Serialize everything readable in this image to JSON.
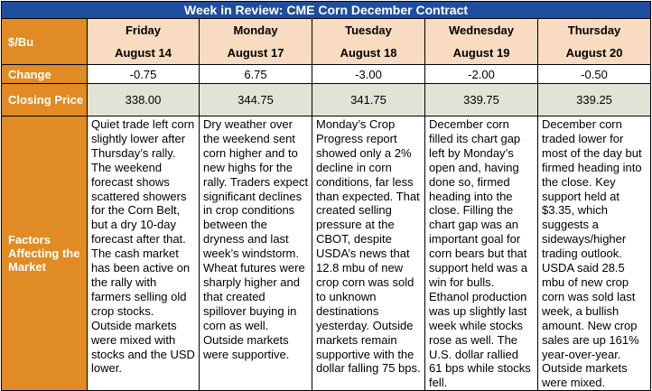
{
  "title": "Week in Review: CME Corn December Contract",
  "unit_label": "$/Bu",
  "row_labels": {
    "change": "Change",
    "closing_price": "Closing Price",
    "factors": "Factors Affecting the Market"
  },
  "days": [
    {
      "day": "Friday",
      "date": "August 14",
      "change": "-0.75",
      "close": "338.00",
      "factors": "Quiet trade left corn slightly lower after Thursday’s rally. The weekend forecast shows scattered showers for the Corn Belt, but a dry 10-day forecast after that. The cash market has been active on the rally with farmers selling old crop stocks. Outside markets were mixed with stocks and the USD lower."
    },
    {
      "day": "Monday",
      "date": "August 17",
      "change": "6.75",
      "close": "344.75",
      "factors": "Dry weather over the weekend sent corn higher and to new highs for the rally. Traders expect significant declines in crop conditions between the dryness and last week’s windstorm. Wheat futures were sharply higher and that created spillover buying in corn as well. Outside markets were supportive."
    },
    {
      "day": "Tuesday",
      "date": "August 18",
      "change": "-3.00",
      "close": "341.75",
      "factors": "Monday’s Crop Progress report showed only a 2% decline in corn conditions, far less than expected. That created selling pressure at the CBOT, despite USDA’s news that 12.8 mbu of new crop corn was sold to unknown destinations yesterday. Outside markets remain supportive with the dollar falling 75 bps."
    },
    {
      "day": "Wednesday",
      "date": "August 19",
      "change": "-2.00",
      "close": "339.75",
      "factors": "December corn filled its chart gap left by Monday’s open and, having done so, firmed heading into the close. Filling the chart gap was an important goal for corn bears but that support held was a win for bulls. Ethanol production was up slightly last week while stocks rose as well. The U.S. dollar rallied 61 bps while stocks fell."
    },
    {
      "day": "Thursday",
      "date": "August 20",
      "change": "-0.50",
      "close": "339.25",
      "factors": "December corn traded lower for most of the day but firmed heading into the close. Key support held at $3.35, which suggests a sideways/higher trading outlook. USDA said 28.5 mbu of new crop corn was sold last week, a bullish amount. New crop sales are up 161% year-over-year. Outside markets were mixed."
    }
  ]
}
